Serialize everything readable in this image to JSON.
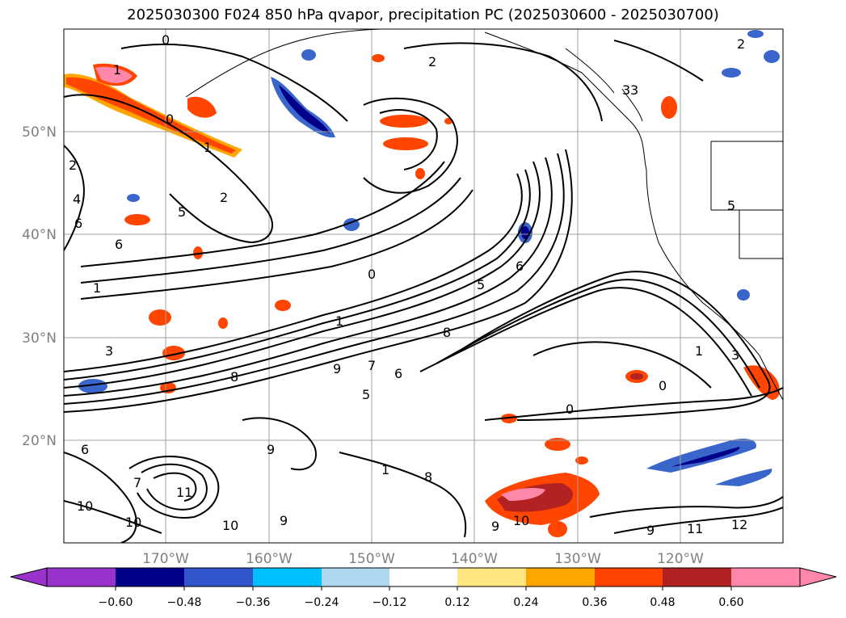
{
  "title": "2025030300 F024 850 hPa qvapor, precipitation PC (2025030600 - 2025030700)",
  "map": {
    "lon_range": [
      -179,
      -109
    ],
    "lat_range": [
      10,
      60
    ],
    "lon_ticks": [
      {
        "value": -170,
        "label": "170°W"
      },
      {
        "value": -160,
        "label": "160°W"
      },
      {
        "value": -150,
        "label": "150°W"
      },
      {
        "value": -140,
        "label": "140°W"
      },
      {
        "value": -130,
        "label": "130°W"
      },
      {
        "value": -120,
        "label": "120°W"
      }
    ],
    "lat_ticks": [
      {
        "value": 50,
        "label": "50°N"
      },
      {
        "value": 40,
        "label": "40°N"
      },
      {
        "value": 30,
        "label": "30°N"
      },
      {
        "value": 20,
        "label": "20°N"
      }
    ],
    "gridlines": true
  },
  "contour_labels": [
    "0",
    "1",
    "1",
    "2",
    "2",
    "2",
    "4",
    "5",
    "6",
    "6",
    "0",
    "0",
    "1",
    "1",
    "3",
    "5",
    "6",
    "8",
    "9",
    "7",
    "6",
    "5",
    "0",
    "1",
    "0",
    "3",
    "3",
    "3",
    "6",
    "8",
    "9",
    "10",
    "10",
    "10",
    "11",
    "12",
    "9",
    "8",
    "5",
    "2",
    "10",
    "11",
    "9",
    "9",
    "7",
    "1"
  ],
  "colorbar": {
    "ticks": [
      "−0.60",
      "−0.48",
      "−0.36",
      "−0.24",
      "−0.12",
      "0.12",
      "0.24",
      "0.36",
      "0.48",
      "0.60"
    ],
    "colors": [
      "#9933cc",
      "#00008b",
      "#3355cc",
      "#00bfff",
      "#add8f0",
      "#ffffff",
      "#ffe680",
      "#ffa500",
      "#ff4500",
      "#b22222",
      "#ff88aa"
    ]
  },
  "shading_colors": {
    "neg_light": "#add8f0",
    "neg_mid": "#3a66cc",
    "neg_dark": "#00008b",
    "pos_light": "#ffe680",
    "pos_mid": "#ff8c00",
    "pos_strong": "#ff4500",
    "pos_dark": "#b22222",
    "pos_max": "#ff88aa"
  }
}
